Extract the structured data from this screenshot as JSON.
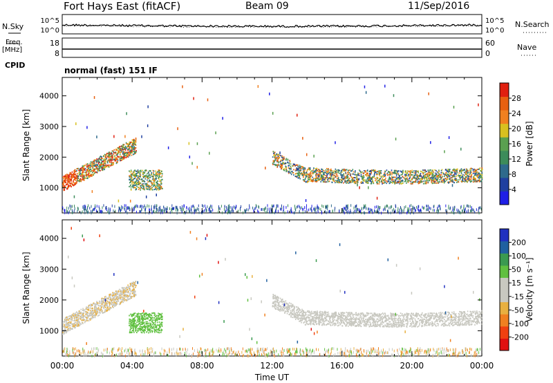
{
  "header": {
    "station": "Fort Hays East (fitACF)",
    "beam": "Beam 09",
    "date": "11/Sep/2016"
  },
  "top_panels": {
    "nsky_label": "N.Sky",
    "nsearch_label": "N.Search",
    "nsky_ticks": [
      "10^5",
      "10^0"
    ],
    "freq_label_1": "Freq.",
    "freq_label_2": "[MHz]",
    "freq_ticks": [
      "18",
      "8"
    ],
    "nave_label": "Nave",
    "nave_ticks": [
      "60",
      "0"
    ],
    "cpid_label": "CPID",
    "mode_text": "normal (fast) 151 IF"
  },
  "colors": {
    "power_scale": [
      "#1f1fe6",
      "#2040a0",
      "#2e6a8c",
      "#3c8c5a",
      "#5aa050",
      "#d8c020",
      "#f08020",
      "#e86010",
      "#e02010"
    ],
    "velocity_scale": [
      "#e01010",
      "#f04010",
      "#f08020",
      "#e8b040",
      "#c8c8c0",
      "#c8c8c0",
      "#60c040",
      "#3a9a50",
      "#2060a0",
      "#2030c0"
    ]
  },
  "chart_data": [
    {
      "type": "heatmap",
      "name": "power",
      "ylabel": "Slant Range [km]",
      "colorbar_label": "Power [dB]",
      "colorbar_ticks": [
        "28",
        "24",
        "20",
        "16",
        "12",
        "8",
        "4"
      ],
      "yticks": [
        "4000",
        "3000",
        "2000",
        "1000"
      ],
      "xlim_hours": [
        0,
        24
      ],
      "ylim_km": [
        180,
        4600
      ]
    },
    {
      "type": "heatmap",
      "name": "velocity",
      "ylabel": "Slant Range [km]",
      "colorbar_label": "Velocity [m s⁻¹]",
      "colorbar_ticks": [
        "200",
        "100",
        "50",
        "15",
        "-15",
        "-50",
        "-100",
        "-200"
      ],
      "yticks": [
        "4000",
        "3000",
        "2000",
        "1000"
      ],
      "xlim_hours": [
        0,
        24
      ],
      "ylim_km": [
        180,
        4600
      ]
    }
  ],
  "x_axis": {
    "ticks": [
      "00:00",
      "04:00",
      "08:00",
      "12:00",
      "16:00",
      "20:00",
      "00:00"
    ],
    "label": "Time UT"
  }
}
